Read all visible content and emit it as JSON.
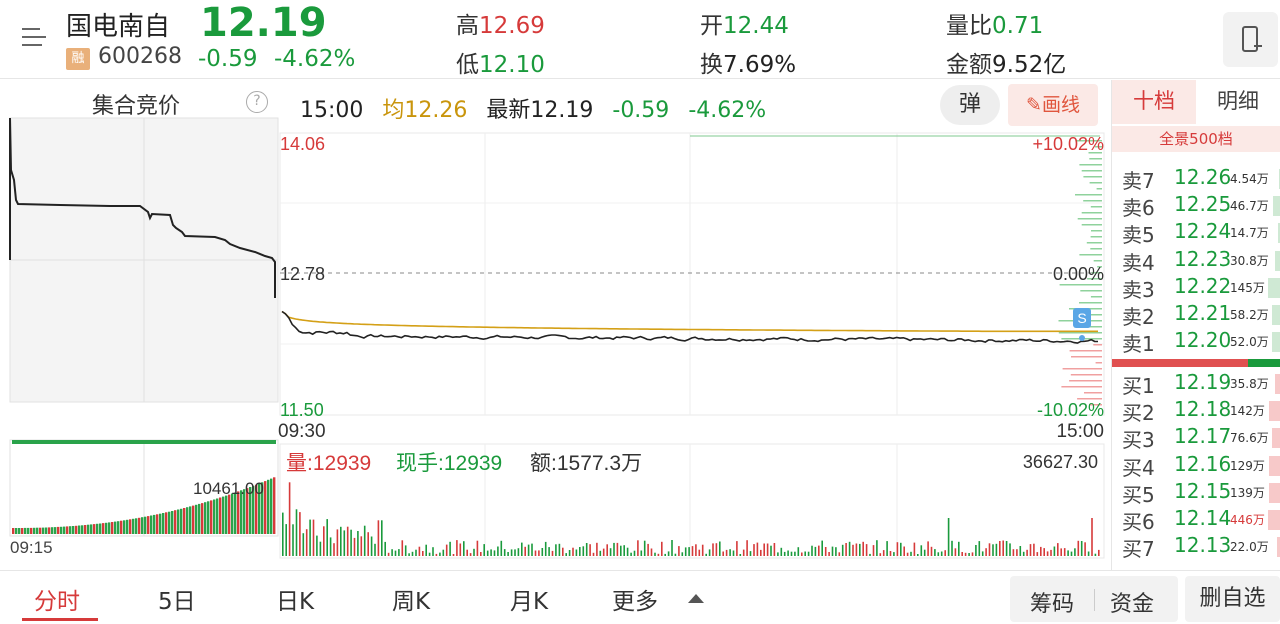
{
  "header": {
    "stock_name": "国电南自",
    "margin_badge": "融",
    "stock_code": "600268",
    "price": "12.19",
    "change": "-0.59",
    "change_pct": "-4.62%",
    "high_label": "高",
    "high": "12.69",
    "low_label": "低",
    "low": "12.10",
    "open_label": "开",
    "open": "12.44",
    "turnover_label": "换",
    "turnover": "7.69%",
    "vol_ratio_label": "量比",
    "vol_ratio": "0.71",
    "amount_label": "金额",
    "amount": "9.52亿"
  },
  "toolbar": {
    "auction_label": "集合竞价",
    "help": "?",
    "time": "15:00",
    "avg_label": "均12.26",
    "latest_label": "最新12.19",
    "change": "-0.59",
    "change_pct": "-4.62%",
    "popup_label": "弹",
    "draw_label": "画线"
  },
  "chart": {
    "y_top": "14.06",
    "y_mid": "12.78",
    "y_bottom": "11.50",
    "pct_top": "+10.02%",
    "pct_mid": "0.00%",
    "pct_bottom": "-10.02%",
    "time_start": "09:30",
    "time_end": "15:00",
    "auction_time": "09:15",
    "auction_vol": "10461.00",
    "vol_label": "量:12939",
    "cur_hand_label": "现手:12939",
    "amount_label": "额:1577.3万",
    "vol_max": "36627.30",
    "s_marker": "S"
  },
  "orderbook": {
    "tab_ten": "十档",
    "tab_detail": "明细",
    "full500": "全景500档",
    "asks": [
      {
        "label": "卖7",
        "price": "12.26",
        "vol": "4.54万",
        "bar": 8
      },
      {
        "label": "卖6",
        "price": "12.25",
        "vol": "46.7万",
        "bar": 60
      },
      {
        "label": "卖5",
        "price": "12.24",
        "vol": "14.7万",
        "bar": 20
      },
      {
        "label": "卖4",
        "price": "12.23",
        "vol": "30.8万",
        "bar": 40
      },
      {
        "label": "卖3",
        "price": "12.22",
        "vol": "145万",
        "bar": 100
      },
      {
        "label": "卖2",
        "price": "12.21",
        "vol": "58.2万",
        "bar": 70
      },
      {
        "label": "卖1",
        "price": "12.20",
        "vol": "52.0万",
        "bar": 65
      }
    ],
    "bids": [
      {
        "label": "买1",
        "price": "12.19",
        "vol": "35.8万",
        "bar": 40
      },
      {
        "label": "买2",
        "price": "12.18",
        "vol": "142万",
        "bar": 95
      },
      {
        "label": "买3",
        "price": "12.17",
        "vol": "76.6万",
        "bar": 70
      },
      {
        "label": "买4",
        "price": "12.16",
        "vol": "129万",
        "bar": 90
      },
      {
        "label": "买5",
        "price": "12.15",
        "vol": "139万",
        "bar": 95
      },
      {
        "label": "买6",
        "price": "12.14",
        "vol": "446万",
        "bar": 100
      },
      {
        "label": "买7",
        "price": "12.13",
        "vol": "22.0万",
        "bar": 25
      }
    ]
  },
  "nav": {
    "fenshi": "分时",
    "five_day": "5日",
    "day_k": "日K",
    "week_k": "周K",
    "month_k": "月K",
    "more": "更多",
    "chips": "筹码",
    "funds": "资金",
    "delete_watch": "删自选"
  },
  "colors": {
    "up": "#d63a3a",
    "down": "#1a9a3c",
    "avg_line": "#d4a017",
    "price_line": "#222222"
  }
}
